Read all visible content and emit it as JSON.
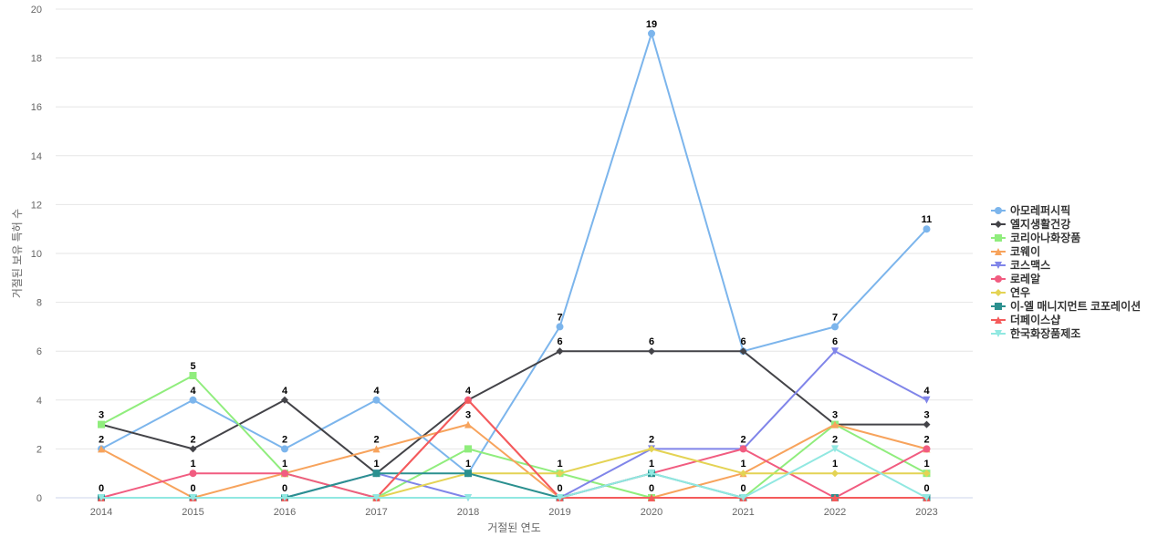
{
  "chart_data": {
    "type": "line",
    "xlabel": "거절된 연도",
    "ylabel": "거절된 보유 특허 수",
    "ylim": [
      0,
      20
    ],
    "y_ticks": [
      0,
      2,
      4,
      6,
      8,
      10,
      12,
      14,
      16,
      18,
      20
    ],
    "categories": [
      "2014",
      "2015",
      "2016",
      "2017",
      "2018",
      "2019",
      "2020",
      "2021",
      "2022",
      "2023"
    ],
    "grid": "horizontal",
    "legend_position": "right",
    "series": [
      {
        "name": "아모레퍼시픽",
        "color": "#7cb5ec",
        "marker": "circle",
        "values": [
          2,
          4,
          2,
          4,
          1,
          7,
          19,
          6,
          7,
          11
        ]
      },
      {
        "name": "엘지생활건강",
        "color": "#434348",
        "marker": "diamond",
        "values": [
          3,
          2,
          4,
          1,
          4,
          6,
          6,
          6,
          3,
          3
        ]
      },
      {
        "name": "코리아나화장품",
        "color": "#90ed7d",
        "marker": "square",
        "values": [
          3,
          5,
          1,
          0,
          2,
          1,
          0,
          0,
          3,
          1
        ]
      },
      {
        "name": "코웨이",
        "color": "#f7a35c",
        "marker": "triangle",
        "values": [
          2,
          0,
          1,
          2,
          3,
          0,
          0,
          1,
          3,
          2
        ]
      },
      {
        "name": "코스맥스",
        "color": "#8085e9",
        "marker": "triangle-down",
        "values": [
          0,
          0,
          0,
          1,
          0,
          0,
          2,
          2,
          6,
          4
        ]
      },
      {
        "name": "로레알",
        "color": "#f15c80",
        "marker": "circle",
        "values": [
          0,
          1,
          1,
          0,
          4,
          0,
          1,
          2,
          0,
          2
        ]
      },
      {
        "name": "연우",
        "color": "#e4d354",
        "marker": "diamond",
        "values": [
          0,
          0,
          0,
          0,
          1,
          1,
          2,
          1,
          1,
          1
        ]
      },
      {
        "name": "이-엘 매니지먼트 코포레이션",
        "color": "#2b908f",
        "marker": "square",
        "values": [
          0,
          0,
          0,
          1,
          1,
          0,
          1,
          0,
          0,
          0
        ]
      },
      {
        "name": "더페이스샵",
        "color": "#f45b5b",
        "marker": "triangle",
        "values": [
          0,
          0,
          0,
          0,
          4,
          0,
          0,
          0,
          0,
          0
        ]
      },
      {
        "name": "한국화장품제조",
        "color": "#91e8e1",
        "marker": "triangle-down",
        "values": [
          0,
          0,
          0,
          0,
          0,
          0,
          1,
          0,
          2,
          0
        ]
      }
    ],
    "data_labels": [
      {
        "series": "아모레퍼시픽",
        "index": 1
      },
      {
        "series": "아모레퍼시픽",
        "index": 2
      },
      {
        "series": "아모레퍼시픽",
        "index": 3
      },
      {
        "series": "아모레퍼시픽",
        "index": 5
      },
      {
        "series": "아모레퍼시픽",
        "index": 6
      },
      {
        "series": "아모레퍼시픽",
        "index": 8
      },
      {
        "series": "아모레퍼시픽",
        "index": 9
      },
      {
        "series": "엘지생활건강",
        "index": 1
      },
      {
        "series": "엘지생활건강",
        "index": 2
      },
      {
        "series": "엘지생활건강",
        "index": 3
      },
      {
        "series": "엘지생활건강",
        "index": 4
      },
      {
        "series": "엘지생활건강",
        "index": 5
      },
      {
        "series": "엘지생활건강",
        "index": 6
      },
      {
        "series": "엘지생활건강",
        "index": 7
      },
      {
        "series": "엘지생활건강",
        "index": 9
      },
      {
        "series": "코리아나화장품",
        "index": 0
      },
      {
        "series": "코리아나화장품",
        "index": 1
      },
      {
        "series": "코웨이",
        "index": 0
      },
      {
        "series": "코웨이",
        "index": 3
      },
      {
        "series": "코웨이",
        "index": 4
      },
      {
        "series": "코스맥스",
        "index": 8
      },
      {
        "series": "코스맥스",
        "index": 9
      },
      {
        "series": "로레알",
        "index": 1
      },
      {
        "series": "로레알",
        "index": 2
      },
      {
        "series": "로레알",
        "index": 7
      },
      {
        "series": "로레알",
        "index": 9
      },
      {
        "series": "연우",
        "index": 4
      },
      {
        "series": "연우",
        "index": 5
      },
      {
        "series": "연우",
        "index": 6
      },
      {
        "series": "연우",
        "index": 7
      },
      {
        "series": "연우",
        "index": 8
      },
      {
        "series": "연우",
        "index": 9
      },
      {
        "series": "이-엘 매니지먼트 코포레이션",
        "index": 0
      },
      {
        "series": "이-엘 매니지먼트 코포레이션",
        "index": 2
      },
      {
        "series": "이-엘 매니지먼트 코포레이션",
        "index": 3
      },
      {
        "series": "이-엘 매니지먼트 코포레이션",
        "index": 5
      },
      {
        "series": "이-엘 매니지먼트 코포레이션",
        "index": 6
      },
      {
        "series": "이-엘 매니지먼트 코포레이션",
        "index": 7
      },
      {
        "series": "이-엘 매니지먼트 코포레이션",
        "index": 9
      },
      {
        "series": "더페이스샵",
        "index": 4
      },
      {
        "series": "더페이스샵",
        "index": 6
      },
      {
        "series": "한국화장품제조",
        "index": 8
      },
      {
        "series": "한국화장품제조",
        "index": 1
      },
      {
        "series": "코리아나화장품",
        "index": 8
      }
    ]
  }
}
